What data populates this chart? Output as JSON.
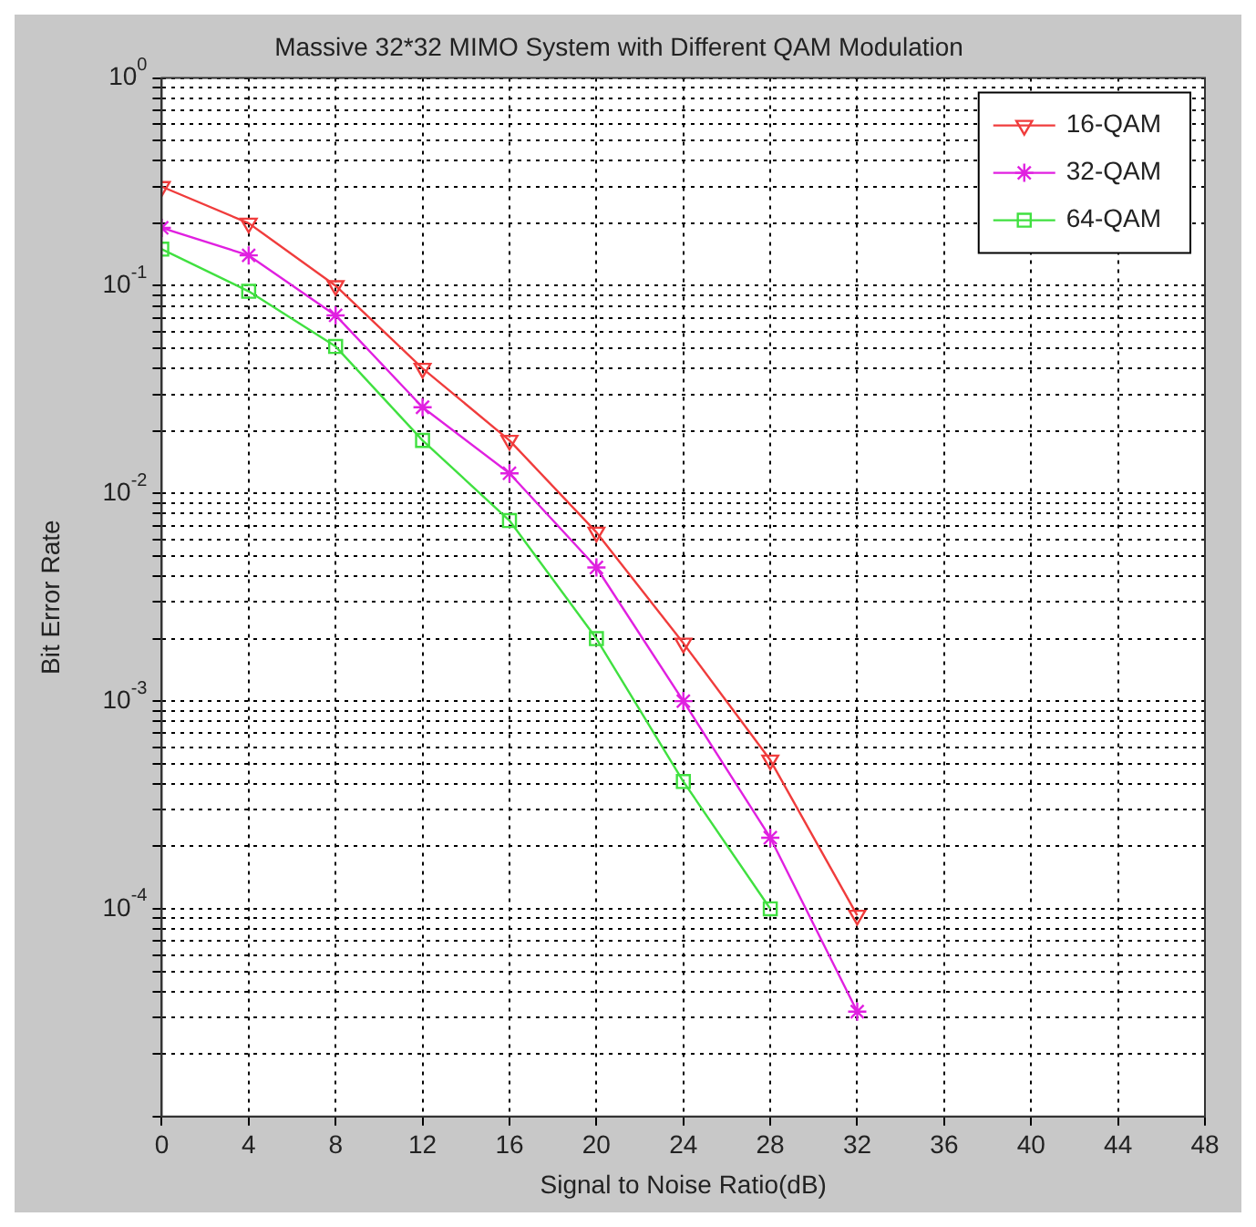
{
  "chart_data": {
    "type": "line",
    "title": "Massive 32*32 MIMO System with Different QAM Modulation",
    "xlabel": "Signal to Noise Ratio(dB)",
    "ylabel": "Bit Error Rate",
    "x": [
      0,
      4,
      8,
      12,
      16,
      20,
      24,
      28,
      32
    ],
    "series": [
      {
        "name": "16-QAM",
        "color": "#f03c3c",
        "marker": "triangle",
        "values": [
          0.3,
          0.2,
          0.1,
          0.04,
          0.018,
          0.0065,
          0.0019,
          0.00052,
          9.3e-05
        ]
      },
      {
        "name": "32-QAM",
        "color": "#e020e0",
        "marker": "cross",
        "values": [
          0.19,
          0.14,
          0.072,
          0.026,
          0.0125,
          0.0044,
          0.001,
          0.00022,
          3.2e-05
        ]
      },
      {
        "name": "64-QAM",
        "color": "#40e040",
        "marker": "square",
        "values": [
          0.15,
          0.094,
          0.051,
          0.018,
          0.0074,
          0.002,
          0.00041,
          0.0001,
          null
        ]
      }
    ],
    "log": "y",
    "xlim": [
      0,
      48
    ],
    "xticks": [
      0,
      4,
      8,
      12,
      16,
      20,
      24,
      28,
      32,
      36,
      40,
      44,
      48
    ],
    "ylim": [
      1e-05,
      1
    ],
    "yticks": [
      {
        "value": 1e-05,
        "label": null
      },
      {
        "value": 2e-05,
        "label": null
      },
      {
        "value": 3e-05,
        "label": null
      },
      {
        "value": 4e-05,
        "label": null
      },
      {
        "value": 5e-05,
        "label": null
      },
      {
        "value": 6e-05,
        "label": null
      },
      {
        "value": 7e-05,
        "label": null
      },
      {
        "value": 8e-05,
        "label": null
      },
      {
        "value": 9e-05,
        "label": null
      },
      {
        "value": 0.0001,
        "label": "10$^{-4}$"
      },
      {
        "value": 0.0002,
        "label": null
      },
      {
        "value": 0.0003,
        "label": null
      },
      {
        "value": 0.0004,
        "label": null
      },
      {
        "value": 0.0005,
        "label": null
      },
      {
        "value": 0.0006,
        "label": null
      },
      {
        "value": 0.0007,
        "label": null
      },
      {
        "value": 0.0008,
        "label": null
      },
      {
        "value": 0.0009,
        "label": null
      },
      {
        "value": 0.001,
        "label": "10$^{-3}$"
      },
      {
        "value": 0.002,
        "label": null
      },
      {
        "value": 0.003,
        "label": null
      },
      {
        "value": 0.004,
        "label": null
      },
      {
        "value": 0.005,
        "label": null
      },
      {
        "value": 0.006,
        "label": null
      },
      {
        "value": 0.007,
        "label": null
      },
      {
        "value": 0.008,
        "label": null
      },
      {
        "value": 0.009,
        "label": null
      },
      {
        "value": 0.01,
        "label": "10$^{-2}$"
      },
      {
        "value": 0.02,
        "label": null
      },
      {
        "value": 0.03,
        "label": null
      },
      {
        "value": 0.04,
        "label": null
      },
      {
        "value": 0.05,
        "label": null
      },
      {
        "value": 0.06,
        "label": null
      },
      {
        "value": 0.07,
        "label": null
      },
      {
        "value": 0.08,
        "label": null
      },
      {
        "value": 0.09,
        "label": null
      },
      {
        "value": 0.1,
        "label": "10$^{-1}$"
      },
      {
        "value": 0.2,
        "label": null
      },
      {
        "value": 0.3,
        "label": null
      },
      {
        "value": 0.4,
        "label": null
      },
      {
        "value": 0.5,
        "label": null
      },
      {
        "value": 0.6,
        "label": null
      },
      {
        "value": 0.7,
        "label": null
      },
      {
        "value": 0.8,
        "label": null
      },
      {
        "value": 0.9,
        "label": null
      },
      {
        "value": 1,
        "label": "10$^{0}$"
      }
    ],
    "grid": true,
    "legend": "top right",
    "line_style": "solid"
  }
}
